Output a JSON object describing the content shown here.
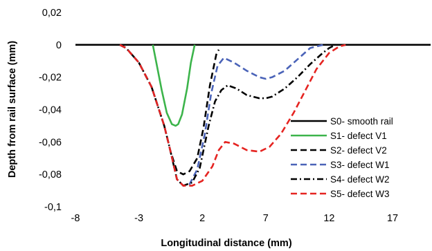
{
  "chart_data": {
    "type": "line",
    "title": "",
    "xlabel": "Longitudinal distance (mm)",
    "ylabel": "Depth from rail surface (mm)",
    "xlim": [
      -8,
      20
    ],
    "ylim": [
      -0.1,
      0.02
    ],
    "xticks": [
      -8,
      -3,
      2,
      7,
      12,
      17
    ],
    "xtick_labels": [
      "-8",
      "-3",
      "2",
      "7",
      "12",
      "17"
    ],
    "yticks": [
      0.02,
      0,
      -0.02,
      -0.04,
      -0.06,
      -0.08,
      -0.1
    ],
    "ytick_labels": [
      "0,02",
      "0",
      "-0,02",
      "-0,04",
      "-0,06",
      "-0,08",
      "-0,1"
    ],
    "grid": false,
    "legend_position": "right",
    "series": [
      {
        "name": "S0- smooth rail",
        "color": "#000000",
        "style": "solid",
        "x": [
          -8,
          20
        ],
        "y": [
          0,
          0
        ]
      },
      {
        "name": "S1- defect V1",
        "color": "#3CB44B",
        "style": "solid",
        "x": [
          -1.9,
          -1.6,
          -1.2,
          -0.8,
          -0.4,
          -0.1,
          0.1,
          0.4,
          0.8,
          1.1,
          1.4
        ],
        "y": [
          0,
          -0.012,
          -0.028,
          -0.042,
          -0.049,
          -0.05,
          -0.049,
          -0.043,
          -0.027,
          -0.011,
          0
        ]
      },
      {
        "name": "S2- defect V2",
        "color": "#000000",
        "style": "dashed",
        "x": [
          -4.5,
          -4,
          -3,
          -2,
          -1,
          -0.5,
          0,
          0.5,
          1,
          1.6,
          2.1,
          2.6,
          3.1,
          3.3
        ],
        "y": [
          0,
          -0.002,
          -0.011,
          -0.026,
          -0.05,
          -0.066,
          -0.078,
          -0.08,
          -0.078,
          -0.07,
          -0.051,
          -0.025,
          -0.006,
          -0.003
        ]
      },
      {
        "name": "S3- defect W1",
        "color": "#4A63B8",
        "style": "dashed",
        "x": [
          -4.5,
          -4,
          -3,
          -2,
          -1,
          -0.5,
          0,
          0.5,
          1,
          1.6,
          2.2,
          2.7,
          3.2,
          3.7,
          4.5,
          5.5,
          6.5,
          7,
          7.5,
          8.5,
          9.5,
          10.5,
          11.5
        ],
        "y": [
          0,
          -0.002,
          -0.011,
          -0.026,
          -0.05,
          -0.066,
          -0.083,
          -0.087,
          -0.086,
          -0.077,
          -0.055,
          -0.03,
          -0.013,
          -0.008,
          -0.011,
          -0.016,
          -0.02,
          -0.021,
          -0.02,
          -0.016,
          -0.009,
          -0.002,
          0
        ]
      },
      {
        "name": "S4- defect W2",
        "color": "#000000",
        "style": "dashdot",
        "x": [
          -4.5,
          -4,
          -3,
          -2,
          -1,
          -0.5,
          0,
          0.5,
          1.2,
          1.8,
          2.5,
          3,
          3.5,
          4,
          4.7,
          5.5,
          6.5,
          7,
          7.5,
          8.5,
          9.5,
          10.5,
          11.5,
          12,
          12.5
        ],
        "y": [
          0,
          -0.002,
          -0.011,
          -0.026,
          -0.05,
          -0.066,
          -0.083,
          -0.087,
          -0.085,
          -0.076,
          -0.05,
          -0.035,
          -0.028,
          -0.025,
          -0.027,
          -0.031,
          -0.033,
          -0.033,
          -0.032,
          -0.027,
          -0.02,
          -0.012,
          -0.005,
          -0.002,
          0
        ]
      },
      {
        "name": "S5- defect W3",
        "color": "#E52421",
        "style": "dashed",
        "x": [
          -4.5,
          -4,
          -3,
          -2,
          -1,
          -0.5,
          0,
          0.5,
          1.2,
          2,
          2.8,
          3.3,
          3.8,
          4.5,
          5.5,
          6.5,
          7.3,
          8.2,
          9.2,
          10.2,
          11,
          12,
          12.8,
          13.3
        ],
        "y": [
          0,
          -0.002,
          -0.011,
          -0.026,
          -0.05,
          -0.066,
          -0.083,
          -0.087,
          -0.087,
          -0.084,
          -0.075,
          -0.065,
          -0.06,
          -0.061,
          -0.065,
          -0.066,
          -0.063,
          -0.055,
          -0.042,
          -0.027,
          -0.015,
          -0.005,
          -0.001,
          0
        ]
      }
    ]
  }
}
